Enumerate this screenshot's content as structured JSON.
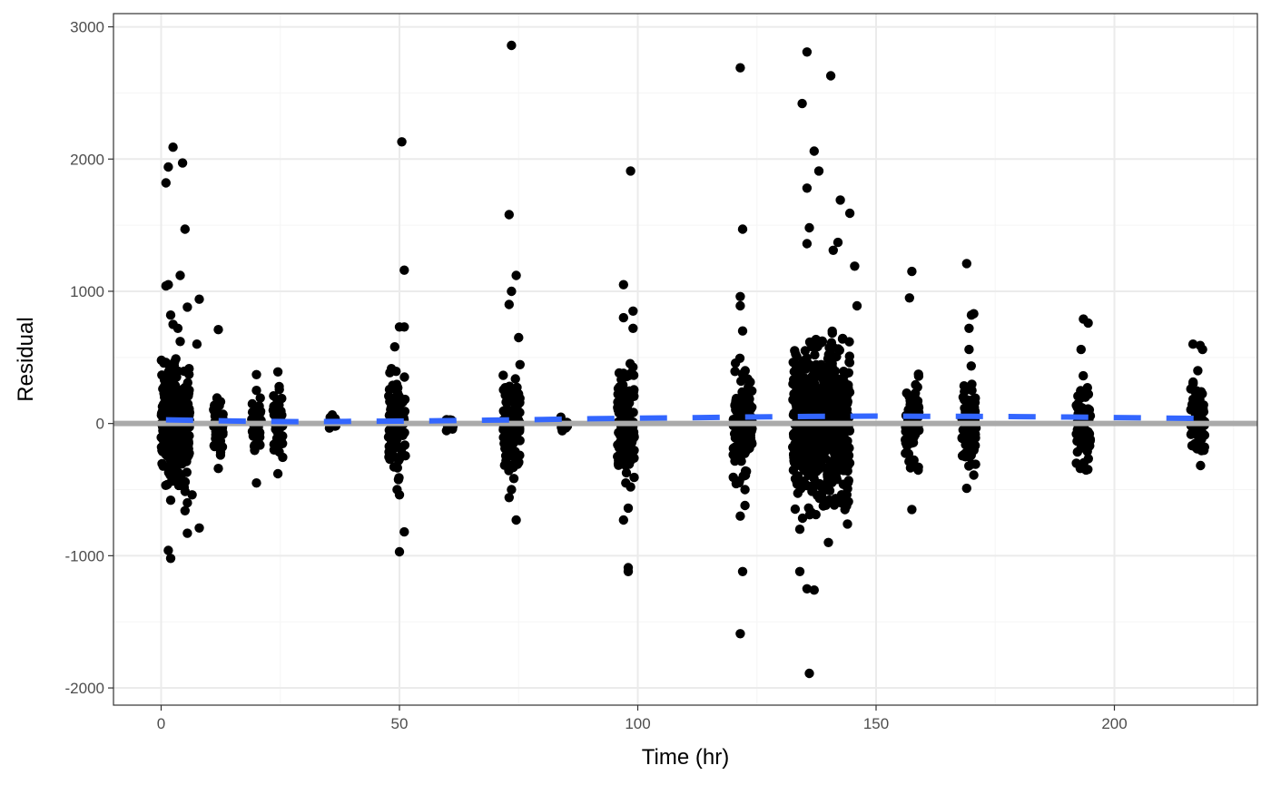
{
  "chart_data": {
    "type": "scatter",
    "title": "",
    "xlabel": "Time (hr)",
    "ylabel": "Residual",
    "xlim": [
      -10,
      230
    ],
    "ylim": [
      -2130,
      3100
    ],
    "x_ticks": [
      0,
      50,
      100,
      150,
      200
    ],
    "x_tick_labels": [
      "0",
      "50",
      "100",
      "150",
      "200"
    ],
    "x_minor_breaks": [
      25,
      75,
      125,
      175,
      225
    ],
    "y_ticks": [
      -2000,
      -1000,
      0,
      1000,
      2000,
      3000
    ],
    "y_tick_labels": [
      "-2000",
      "-1000",
      "0",
      "1000",
      "2000",
      "3000"
    ],
    "y_minor_breaks": [
      -1500,
      -500,
      500,
      1500,
      2500
    ],
    "grid": true,
    "theme": "bw",
    "colors": {
      "points": "#000000",
      "reference_line": "#aaaaaa",
      "trend_line": "#3366ff",
      "grid_major": "#ebebeb",
      "grid_minor": "#f5f5f5",
      "panel_border": "#333333"
    },
    "reference_line": {
      "y": 0,
      "style": "solid"
    },
    "trend_line": {
      "style": "dashed",
      "x": [
        1,
        10,
        20,
        30,
        40,
        50,
        60,
        70,
        80,
        90,
        100,
        110,
        120,
        130,
        140,
        150,
        160,
        170,
        180,
        190,
        200,
        210,
        219
      ],
      "y": [
        28,
        22,
        16,
        14,
        16,
        18,
        22,
        26,
        30,
        36,
        40,
        44,
        48,
        52,
        55,
        56,
        55,
        54,
        52,
        49,
        45,
        41,
        38
      ]
    },
    "clusters": [
      {
        "x": 3,
        "spread_x": 3,
        "count": 320,
        "sd": 200,
        "extra_x": [
          1.0,
          1.5,
          2.5,
          4.5,
          1.0,
          4.0,
          5.0,
          1.5,
          2.0,
          2.5,
          5.5,
          8.0,
          3.5,
          4.0,
          7.5,
          2.0,
          5.5,
          6.5,
          5.0,
          8.0,
          5.5,
          1.5,
          2.0
        ],
        "extra_y": [
          1820,
          1940,
          2090,
          1970,
          1040,
          1120,
          1470,
          1050,
          820,
          750,
          880,
          940,
          720,
          620,
          600,
          -580,
          -600,
          -540,
          -660,
          -790,
          -830,
          -960,
          -1020
        ]
      },
      {
        "x": 12,
        "spread_x": 1,
        "count": 60,
        "sd": 110,
        "extra_x": [
          12.0,
          12.0
        ],
        "extra_y": [
          710,
          -340
        ]
      },
      {
        "x": 20,
        "spread_x": 1,
        "count": 40,
        "sd": 120,
        "extra_x": [
          20.0,
          20.0,
          20.0
        ],
        "extra_y": [
          370,
          -450,
          250
        ]
      },
      {
        "x": 24.5,
        "spread_x": 1,
        "count": 45,
        "sd": 120,
        "extra_x": [
          24.5,
          24.5
        ],
        "extra_y": [
          390,
          -380
        ]
      },
      {
        "x": 36,
        "spread_x": 0.8,
        "count": 12,
        "sd": 30,
        "extra_x": [],
        "extra_y": []
      },
      {
        "x": 49.5,
        "spread_x": 1.8,
        "count": 110,
        "sd": 180,
        "extra_x": [
          50.5,
          51.0,
          50.0,
          51.0,
          49.0,
          51.0,
          50.0,
          50.0,
          49.5
        ],
        "extra_y": [
          2130,
          1160,
          730,
          730,
          580,
          -820,
          -970,
          -540,
          -500
        ]
      },
      {
        "x": 60.5,
        "spread_x": 0.8,
        "count": 14,
        "sd": 25,
        "extra_x": [],
        "extra_y": []
      },
      {
        "x": 73.5,
        "spread_x": 1.8,
        "count": 110,
        "sd": 180,
        "extra_x": [
          73.5,
          73.0,
          74.5,
          73.5,
          73.0,
          75.0,
          74.5,
          73.0,
          73.5
        ],
        "extra_y": [
          2860,
          1580,
          1120,
          1000,
          900,
          650,
          -730,
          -560,
          -500
        ]
      },
      {
        "x": 84.5,
        "spread_x": 0.8,
        "count": 12,
        "sd": 25,
        "extra_x": [],
        "extra_y": []
      },
      {
        "x": 97.5,
        "spread_x": 1.8,
        "count": 130,
        "sd": 200,
        "extra_x": [
          98.5,
          97.0,
          99.0,
          97.0,
          99.0,
          98.0,
          98.0,
          97.0,
          98.0
        ],
        "extra_y": [
          1910,
          1050,
          850,
          800,
          720,
          -1090,
          -1120,
          -730,
          -640
        ]
      },
      {
        "x": 122,
        "spread_x": 2,
        "count": 140,
        "sd": 200,
        "extra_x": [
          121.5,
          122.0,
          121.5,
          121.5,
          122.0,
          122.5,
          121.5,
          122.0,
          121.5,
          122.5
        ],
        "extra_y": [
          2690,
          1470,
          960,
          890,
          700,
          -620,
          -700,
          -1120,
          -1590,
          -500
        ]
      },
      {
        "x": 138.5,
        "spread_x": 6,
        "count": 750,
        "sd": 280,
        "extra_x": [
          135.5,
          140.5,
          134.5,
          137.0,
          138.0,
          135.5,
          142.5,
          144.5,
          136.0,
          135.5,
          141.0,
          142.0,
          145.5,
          146.0,
          134.0,
          135.5,
          137.0,
          136.0,
          134.0,
          140.0,
          144.0
        ],
        "extra_y": [
          2810,
          2630,
          2420,
          2060,
          1910,
          1780,
          1690,
          1590,
          1480,
          1360,
          1310,
          1370,
          1190,
          890,
          -1120,
          -1250,
          -1260,
          -1890,
          -800,
          -900,
          -760
        ]
      },
      {
        "x": 157.5,
        "spread_x": 1.5,
        "count": 90,
        "sd": 160,
        "extra_x": [
          157.5,
          157.0,
          157.5
        ],
        "extra_y": [
          1150,
          950,
          -650
        ]
      },
      {
        "x": 169.5,
        "spread_x": 1.5,
        "count": 90,
        "sd": 160,
        "extra_x": [
          169.0,
          170.0,
          170.5,
          169.5,
          169.0,
          170.5,
          169.5
        ],
        "extra_y": [
          1210,
          820,
          830,
          720,
          -490,
          -390,
          560
        ]
      },
      {
        "x": 193.5,
        "spread_x": 1.5,
        "count": 80,
        "sd": 150,
        "extra_x": [
          193.5,
          194.5,
          193.0
        ],
        "extra_y": [
          790,
          760,
          560
        ]
      },
      {
        "x": 217.5,
        "spread_x": 1.5,
        "count": 70,
        "sd": 130,
        "extra_x": [
          216.5,
          218.0,
          217.5,
          218.5
        ],
        "extra_y": [
          600,
          590,
          400,
          560
        ]
      }
    ]
  }
}
